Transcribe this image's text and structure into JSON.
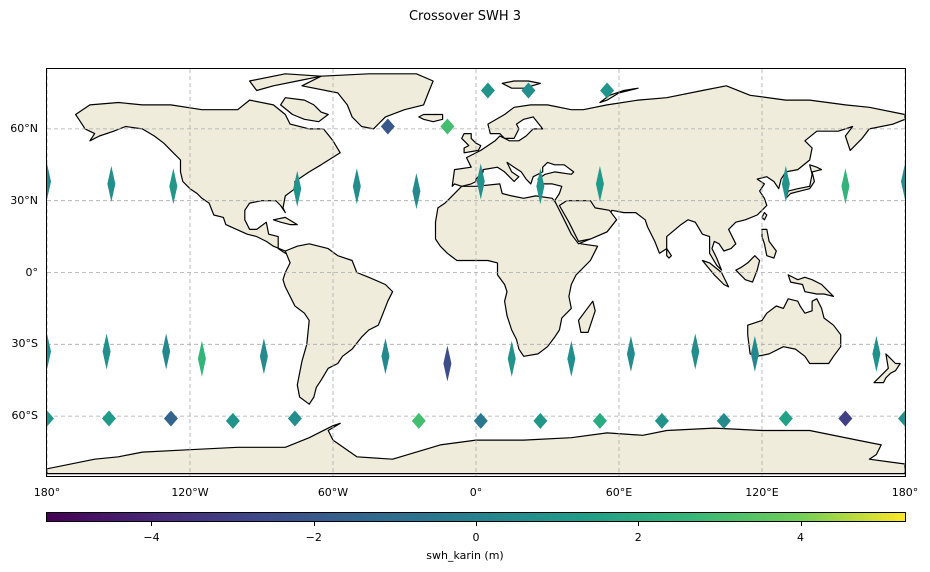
{
  "title": "Crossover SWH 3",
  "colors": {
    "land": "#efecdb",
    "coast": "#000000",
    "grid": "#aaaaaa"
  },
  "map": {
    "lon_range": [
      -180,
      180
    ],
    "lat_range": [
      -85,
      85
    ],
    "lat_ticks": [
      {
        "value": 60,
        "label": "60°N"
      },
      {
        "value": 30,
        "label": "30°N"
      },
      {
        "value": 0,
        "label": "0°"
      },
      {
        "value": -30,
        "label": "30°S"
      },
      {
        "value": -60,
        "label": "60°S"
      }
    ],
    "lon_ticks": [
      {
        "value": -180,
        "label": "180°"
      },
      {
        "value": -120,
        "label": "120°W"
      },
      {
        "value": -60,
        "label": "60°W"
      },
      {
        "value": 0,
        "label": "0°"
      },
      {
        "value": 60,
        "label": "60°E"
      },
      {
        "value": 120,
        "label": "120°E"
      },
      {
        "value": 180,
        "label": "180°"
      }
    ]
  },
  "colorbar": {
    "label": "swh_karin (m)",
    "range": [
      -5.3,
      5.3
    ],
    "colormap": "viridis",
    "ticks": [
      {
        "value": -4,
        "label": "−4"
      },
      {
        "value": -2,
        "label": "−2"
      },
      {
        "value": 0,
        "label": "0"
      },
      {
        "value": 2,
        "label": "2"
      },
      {
        "value": 4,
        "label": "4"
      }
    ]
  },
  "chart_data": {
    "type": "scatter",
    "crossovers": [
      {
        "lon": -180,
        "lat": 38,
        "swh": 0.3
      },
      {
        "lon": -153,
        "lat": 37,
        "swh": 0.6
      },
      {
        "lon": -127,
        "lat": 36,
        "swh": 1.0
      },
      {
        "lon": -75,
        "lat": 35,
        "swh": 0.8
      },
      {
        "lon": -50,
        "lat": 36,
        "swh": 0.5
      },
      {
        "lon": -25,
        "lat": 34,
        "swh": 0.4
      },
      {
        "lon": 2,
        "lat": 38,
        "swh": 0.7
      },
      {
        "lon": 27,
        "lat": 36,
        "swh": 0.9
      },
      {
        "lon": 52,
        "lat": 37,
        "swh": 1.2
      },
      {
        "lon": 130,
        "lat": 37,
        "swh": 0.8
      },
      {
        "lon": 155,
        "lat": 36,
        "swh": 2.5
      },
      {
        "lon": 180,
        "lat": 38,
        "swh": 0.5
      },
      {
        "lon": -180,
        "lat": -33,
        "swh": 0.5
      },
      {
        "lon": -155,
        "lat": -33,
        "swh": 0.7
      },
      {
        "lon": -130,
        "lat": -33,
        "swh": 0.3
      },
      {
        "lon": -115,
        "lat": -36,
        "swh": 2.5
      },
      {
        "lon": -89,
        "lat": -35,
        "swh": 0.4
      },
      {
        "lon": -38,
        "lat": -35,
        "swh": 0.3
      },
      {
        "lon": -12,
        "lat": -38,
        "swh": -2.5
      },
      {
        "lon": 15,
        "lat": -36,
        "swh": 0.8
      },
      {
        "lon": 40,
        "lat": -36,
        "swh": 0.6
      },
      {
        "lon": 65,
        "lat": -34,
        "swh": 0.4
      },
      {
        "lon": 92,
        "lat": -33,
        "swh": 0.5
      },
      {
        "lon": 117,
        "lat": -34,
        "swh": 0.3
      },
      {
        "lon": 168,
        "lat": -34,
        "swh": 0.7
      },
      {
        "lon": -180,
        "lat": -61,
        "swh": 1.0
      },
      {
        "lon": -154,
        "lat": -61,
        "swh": 1.2
      },
      {
        "lon": -128,
        "lat": -61,
        "swh": -1.5
      },
      {
        "lon": -102,
        "lat": -62,
        "swh": 0.8
      },
      {
        "lon": -76,
        "lat": -61,
        "swh": 0.5
      },
      {
        "lon": -24,
        "lat": -62,
        "swh": 3.0
      },
      {
        "lon": 2,
        "lat": -62,
        "swh": -0.5
      },
      {
        "lon": 27,
        "lat": -62,
        "swh": 1.0
      },
      {
        "lon": 52,
        "lat": -62,
        "swh": 2.0
      },
      {
        "lon": 78,
        "lat": -62,
        "swh": 0.8
      },
      {
        "lon": 104,
        "lat": -62,
        "swh": 0.4
      },
      {
        "lon": 130,
        "lat": -61,
        "swh": 1.5
      },
      {
        "lon": 155,
        "lat": -61,
        "swh": -3.0
      },
      {
        "lon": 180,
        "lat": -61,
        "swh": 0.6
      },
      {
        "lon": -37,
        "lat": 61,
        "swh": -2.0
      },
      {
        "lon": -12,
        "lat": 61,
        "swh": 3.0
      },
      {
        "lon": 5,
        "lat": 76,
        "swh": 0.8
      },
      {
        "lon": 22,
        "lat": 76,
        "swh": 0.6
      },
      {
        "lon": 55,
        "lat": 76,
        "swh": 0.9
      }
    ]
  }
}
